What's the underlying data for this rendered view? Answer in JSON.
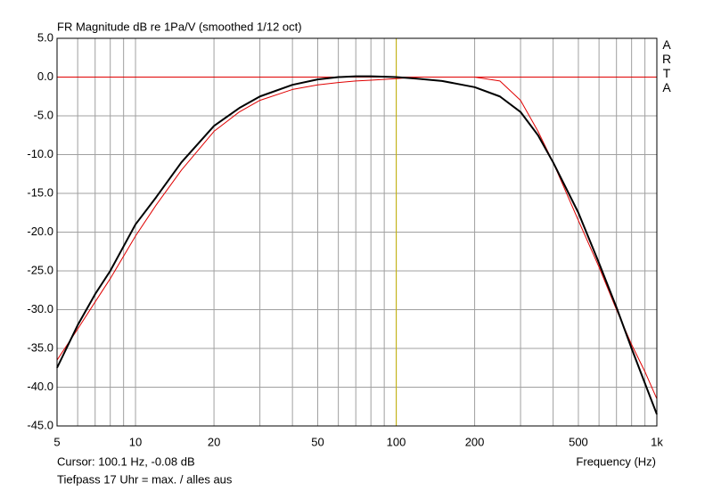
{
  "chart_data": {
    "type": "line",
    "title": "FR Magnitude dB re 1Pa/V (smoothed 1/12 oct)",
    "xlabel": "Frequency (Hz)",
    "side_label": "ARTA",
    "footer": "Tiefpass 17 Uhr = max. / alles aus",
    "cursor": {
      "x": 100.1,
      "label": "Cursor: 100.1 Hz, -0.08 dB",
      "color": "#c8b400"
    },
    "reference_line": {
      "y": 0,
      "color": "#e00000"
    },
    "log_x": true,
    "grid": true,
    "xlim": [
      5,
      1000
    ],
    "ylim": [
      -45,
      5
    ],
    "xticks": [
      5,
      10,
      20,
      50,
      100,
      200,
      500,
      {
        "value": 1000,
        "label": "1k"
      }
    ],
    "x_minor_grid": [
      6,
      7,
      8,
      9,
      30,
      40,
      60,
      70,
      80,
      90,
      300,
      400,
      600,
      700,
      800,
      900
    ],
    "yticks": [
      {
        "value": 5,
        "label": "5.0"
      },
      {
        "value": 0,
        "label": "0.0"
      },
      {
        "value": -5,
        "label": "-5.0"
      },
      {
        "value": -10,
        "label": "-10.0"
      },
      {
        "value": -15,
        "label": "-15.0"
      },
      {
        "value": -20,
        "label": "-20.0"
      },
      {
        "value": -25,
        "label": "-25.0"
      },
      {
        "value": -30,
        "label": "-30.0"
      },
      {
        "value": -35,
        "label": "-35.0"
      },
      {
        "value": -40,
        "label": "-40.0"
      },
      {
        "value": -45,
        "label": "-45.0"
      }
    ],
    "x": [
      5,
      6,
      7,
      8,
      10,
      12,
      15,
      20,
      25,
      30,
      40,
      50,
      60,
      70,
      80,
      100,
      120,
      150,
      200,
      250,
      300,
      350,
      400,
      500,
      600,
      700,
      800,
      900,
      1000
    ],
    "series": [
      {
        "color": "#e00000",
        "width": 1,
        "values": [
          -36.5,
          -32.5,
          -29,
          -26,
          -20.5,
          -16.5,
          -12,
          -7,
          -4.5,
          -3,
          -1.6,
          -1,
          -0.7,
          -0.5,
          -0.4,
          -0.2,
          0,
          0,
          0,
          -0.5,
          -3,
          -7,
          -11,
          -18.5,
          -24.5,
          -30,
          -34.5,
          -38,
          -41.5
        ]
      },
      {
        "color": "#000000",
        "width": 2,
        "values": [
          -37.5,
          -32,
          -28,
          -25,
          -19,
          -15.5,
          -11,
          -6.3,
          -4,
          -2.5,
          -1,
          -0.3,
          0,
          0.1,
          0.1,
          0,
          -0.2,
          -0.5,
          -1.3,
          -2.5,
          -4.5,
          -7.5,
          -11,
          -17.5,
          -24,
          -29.7,
          -35,
          -39.5,
          -43.5
        ]
      }
    ]
  }
}
